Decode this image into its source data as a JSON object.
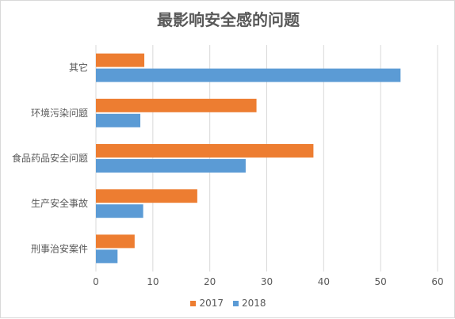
{
  "chart_data": {
    "type": "bar",
    "orientation": "horizontal",
    "title": "最影响安全感的问题",
    "xlabel": "",
    "ylabel": "",
    "xlim": [
      0,
      60
    ],
    "xticks": [
      0,
      10,
      20,
      30,
      40,
      50,
      60
    ],
    "grid": true,
    "legend_position": "bottom",
    "categories": [
      "其它",
      "环境污染问题",
      "食品药品安全问题",
      "生产安全事故",
      "刑事治安案件"
    ],
    "series": [
      {
        "name": "2017",
        "color": "#ed7d31",
        "values": [
          8.5,
          28.2,
          38.2,
          17.8,
          6.8
        ]
      },
      {
        "name": "2018",
        "color": "#5b9bd5",
        "values": [
          53.5,
          7.8,
          26.3,
          8.3,
          3.8
        ]
      }
    ]
  }
}
